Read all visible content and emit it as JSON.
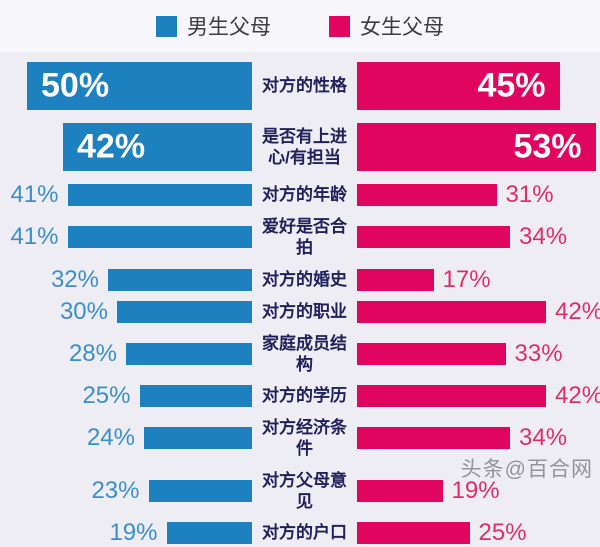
{
  "legend": {
    "items": [
      {
        "label": "男生父母",
        "color": "#1c81be"
      },
      {
        "label": "女生父母",
        "color": "#e0055f"
      }
    ]
  },
  "watermark": "头条@百合网",
  "chart_data": {
    "type": "bar",
    "subtype": "tornado-butterfly-horizontal",
    "categories": [
      "对方的性格",
      "是否有上进心/有担当",
      "对方的年龄",
      "爱好是否合拍",
      "对方的婚史",
      "对方的职业",
      "家庭成员结构",
      "对方的学历",
      "对方经济条件",
      "对方父母意见",
      "对方的户口"
    ],
    "series": [
      {
        "name": "男生父母",
        "side": "left",
        "color": "#1c81be",
        "values": [
          50,
          42,
          41,
          41,
          32,
          30,
          28,
          25,
          24,
          23,
          19
        ]
      },
      {
        "name": "女生父母",
        "side": "right",
        "color": "#e0055f",
        "values": [
          45,
          53,
          31,
          34,
          17,
          42,
          33,
          42,
          34,
          19,
          25
        ]
      }
    ],
    "value_suffix": "%",
    "xlim": [
      0,
      55
    ],
    "emphasized_rows": 2,
    "grid": false,
    "legend_position": "top-center"
  }
}
